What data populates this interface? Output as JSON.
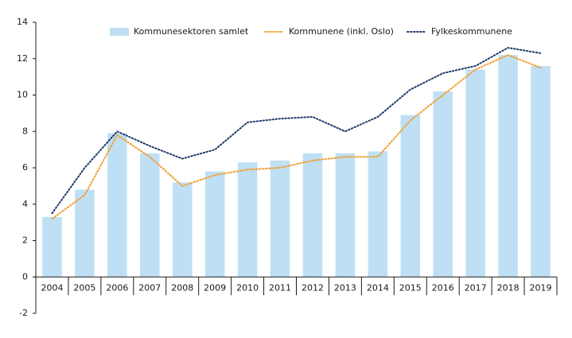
{
  "chart_data": {
    "type": "combo",
    "categories": [
      "2004",
      "2005",
      "2006",
      "2007",
      "2008",
      "2009",
      "2010",
      "2011",
      "2012",
      "2013",
      "2014",
      "2015",
      "2016",
      "2017",
      "2018",
      "2019"
    ],
    "series": [
      {
        "name": "Kommunesektoren samlet",
        "type": "bar",
        "color": "#bfe0f4",
        "values": [
          3.3,
          4.8,
          7.9,
          6.8,
          5.2,
          5.8,
          6.3,
          6.4,
          6.8,
          6.8,
          6.9,
          8.9,
          10.2,
          11.4,
          12.2,
          11.6
        ]
      },
      {
        "name": "Kommunene (inkl. Oslo)",
        "type": "line",
        "color": "#f0a030",
        "values": [
          3.2,
          4.5,
          7.8,
          6.6,
          5.0,
          5.6,
          5.9,
          6.0,
          6.4,
          6.6,
          6.6,
          8.6,
          10.0,
          11.4,
          12.2,
          11.5
        ]
      },
      {
        "name": "Fylkeskommunene",
        "type": "line",
        "color": "#1f3a6a",
        "values": [
          3.5,
          6.0,
          8.0,
          7.2,
          6.5,
          7.0,
          8.5,
          8.7,
          8.8,
          8.0,
          8.8,
          10.3,
          11.2,
          11.6,
          12.6,
          12.3
        ]
      }
    ],
    "ylim": [
      -2,
      14
    ],
    "yticks": [
      -2,
      0,
      2,
      4,
      6,
      8,
      10,
      12,
      14
    ],
    "legend": "top",
    "grid": false
  }
}
